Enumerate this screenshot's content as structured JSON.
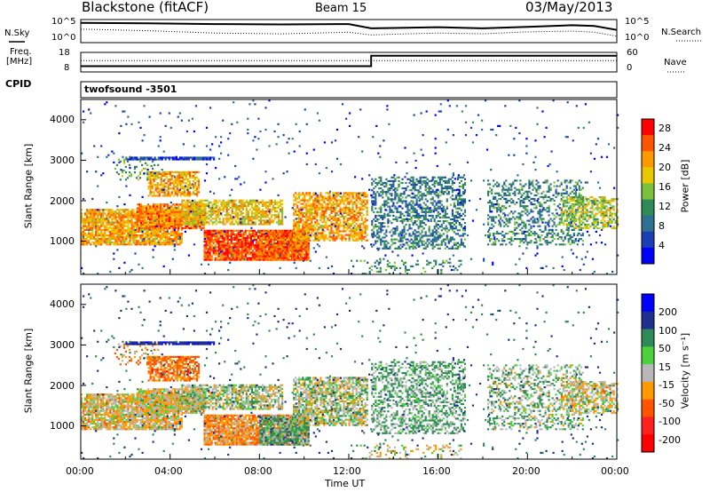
{
  "header": {
    "station": "Blackstone (fitACF)",
    "beam": "Beam 15",
    "date": "03/May/2013"
  },
  "labels": {
    "nsky": "N.Sky",
    "nsearch": "N.Search",
    "freq_line1": "Freq.",
    "freq_line2": "[MHz]",
    "nave": "Nave",
    "cpid": "CPID",
    "cpid_value": "twofsound -3501"
  },
  "chart_data": [
    {
      "type": "line",
      "panel": "noise",
      "ytick_labels": [
        "10^5",
        "10^0"
      ],
      "series": [
        {
          "name": "N.Sky",
          "style": "solid",
          "x": [
            0,
            3,
            6,
            9,
            12,
            13,
            14,
            16,
            18,
            20,
            22,
            23,
            24
          ],
          "y": [
            4.6,
            4.5,
            4.3,
            4.2,
            4.3,
            3.2,
            3.3,
            3.5,
            3.2,
            3.6,
            4.0,
            3.8,
            2.8
          ]
        },
        {
          "name": "N.Search",
          "style": "dotted",
          "x": [
            0,
            3,
            6,
            9,
            12,
            13,
            14,
            16,
            18,
            20,
            22,
            23,
            24
          ],
          "y": [
            3.0,
            2.6,
            2.0,
            1.8,
            2.2,
            1.5,
            1.7,
            2.0,
            1.8,
            2.3,
            2.5,
            2.2,
            1.2
          ]
        }
      ]
    },
    {
      "type": "line",
      "panel": "freq-nave",
      "left_ticks": [
        "18",
        "8"
      ],
      "right_ticks": [
        "60",
        "0"
      ],
      "series": [
        {
          "name": "Freq.",
          "style": "solid",
          "x": [
            0,
            13,
            13,
            24
          ],
          "y": [
            10.5,
            10.5,
            17,
            17
          ]
        },
        {
          "name": "Nave",
          "style": "dotted",
          "x": [
            0,
            24
          ],
          "y": [
            14,
            14
          ]
        }
      ]
    },
    {
      "type": "heatmap",
      "panel": "power",
      "xlabel": "",
      "ylabel": "Slant Range [km]",
      "xlim": [
        0,
        24
      ],
      "ylim": [
        180,
        4500
      ],
      "yticks": [
        1000,
        2000,
        3000,
        4000
      ],
      "colorbar": {
        "label": "Power [dB]",
        "ticks": [
          "28",
          "24",
          "20",
          "16",
          "12",
          "8",
          "4"
        ],
        "colors": [
          "#ff0000",
          "#ff5500",
          "#ff9900",
          "#e8c800",
          "#7bc23a",
          "#2e8b57",
          "#2f6f91",
          "#1a3fb4",
          "#0000ff"
        ]
      }
    },
    {
      "type": "heatmap",
      "panel": "velocity",
      "xlabel": "Time UT",
      "ylabel": "Slant Range [km]",
      "xlim": [
        0,
        24
      ],
      "ylim": [
        180,
        4500
      ],
      "yticks": [
        1000,
        2000,
        3000,
        4000
      ],
      "xtick_labels": [
        "00:00",
        "04:00",
        "08:00",
        "12:00",
        "16:00",
        "20:00",
        "00:00"
      ],
      "colorbar": {
        "label": "Velocity [m s⁻¹]",
        "ticks": [
          "200",
          "100",
          "50",
          "15",
          "-15",
          "-50",
          "-100",
          "-200"
        ],
        "colors": [
          "#0000ff",
          "#1f2f8f",
          "#2e8b57",
          "#4cd03c",
          "#b8b8b8",
          "#ff9900",
          "#ff5500",
          "#ff2020",
          "#ff0000"
        ]
      }
    }
  ],
  "regions": [
    {
      "t0": 0,
      "t1": 4.5,
      "r0": 900,
      "r1": 1800,
      "density": 0.85,
      "pw": 22,
      "vel": -15
    },
    {
      "t0": 2.5,
      "t1": 5.5,
      "r0": 1300,
      "r1": 1900,
      "density": 0.8,
      "pw": 24,
      "vel": -10
    },
    {
      "t0": 4.5,
      "t1": 9,
      "r0": 1400,
      "r1": 2000,
      "density": 0.7,
      "pw": 20,
      "vel": 5
    },
    {
      "t0": 5.5,
      "t1": 10.2,
      "r0": 520,
      "r1": 1250,
      "density": 0.9,
      "pw": 27,
      "vel": -40
    },
    {
      "t0": 8,
      "t1": 10.2,
      "r0": 520,
      "r1": 1200,
      "density": 0.8,
      "pw": 25,
      "vel": 40
    },
    {
      "t0": 9.5,
      "t1": 12.8,
      "r0": 1000,
      "r1": 2200,
      "density": 0.65,
      "pw": 22,
      "vel": 5
    },
    {
      "t0": 3,
      "t1": 5.3,
      "r0": 2100,
      "r1": 2700,
      "density": 0.7,
      "pw": 22,
      "vel": -60
    },
    {
      "t0": 1.5,
      "t1": 3.5,
      "r0": 2500,
      "r1": 3000,
      "density": 0.25,
      "pw": 14,
      "vel": -40
    },
    {
      "t0": 2,
      "t1": 6,
      "r0": 3000,
      "r1": 3080,
      "density": 0.9,
      "pw": 6,
      "vel": 120
    },
    {
      "t0": 13,
      "t1": 17.2,
      "r0": 800,
      "r1": 2600,
      "density": 0.45,
      "pw": 10,
      "vel": 30
    },
    {
      "t0": 18.2,
      "t1": 22.5,
      "r0": 900,
      "r1": 2500,
      "density": 0.35,
      "pw": 11,
      "vel": 20
    },
    {
      "t0": 21.5,
      "t1": 24,
      "r0": 1300,
      "r1": 2100,
      "density": 0.55,
      "pw": 17,
      "vel": -10
    },
    {
      "t0": 12.5,
      "t1": 17,
      "r0": 180,
      "r1": 500,
      "density": 0.2,
      "pw": 12,
      "vel": 0
    },
    {
      "t0": 0,
      "t1": 24,
      "r0": 180,
      "r1": 4500,
      "density": 0.02,
      "pw": 6,
      "vel": 80
    }
  ]
}
